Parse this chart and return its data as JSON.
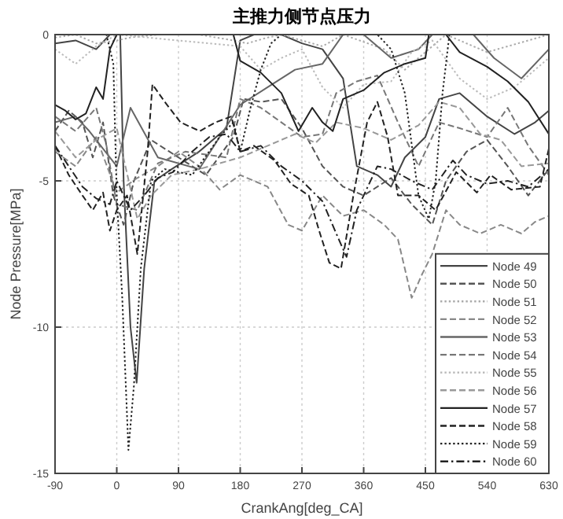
{
  "chart_data": {
    "type": "line",
    "title": "主推力侧节点压力",
    "xlabel": "CrankAng[deg_CA]",
    "ylabel": "Node Pressure[MPa]",
    "xlim": [
      -90,
      630
    ],
    "xticks": [
      -90,
      0,
      90,
      180,
      270,
      360,
      450,
      540,
      630
    ],
    "ylim": [
      -15,
      0
    ],
    "yticks": [
      -15,
      -10,
      -5,
      0
    ],
    "grid": true,
    "legend": "bottom right",
    "marker": "none",
    "series": [
      {
        "name": "Node 49",
        "color": "#444444",
        "line_style": "solid",
        "x": [
          -90,
          -60,
          -30,
          -10,
          5,
          10,
          20,
          29,
          40,
          55,
          80,
          120,
          160,
          180,
          200,
          240,
          270,
          300,
          330,
          350,
          380,
          400,
          420,
          450,
          470,
          500,
          540,
          580,
          610,
          630
        ],
        "values": [
          -0.3,
          -0.2,
          -0.5,
          0,
          0,
          -5,
          -10,
          -11.9,
          -8,
          -5,
          -4.6,
          -4,
          -3.2,
          -0.2,
          0,
          0,
          -0.3,
          -0.5,
          -1.5,
          -4.5,
          -4.8,
          -5.2,
          -4.2,
          -3.5,
          -2.2,
          -2,
          -2.8,
          -3.4,
          -3,
          -2.6
        ]
      },
      {
        "name": "Node 50",
        "color": "#555555",
        "line_style": "dashed",
        "x": [
          -90,
          -70,
          -50,
          -35,
          -20,
          -5,
          10,
          25,
          50,
          90,
          130,
          170,
          185,
          210,
          240,
          270,
          300,
          330,
          360,
          400,
          430,
          460,
          480,
          510,
          540,
          570,
          600,
          630
        ],
        "values": [
          -3.3,
          -2.6,
          -3,
          -4.2,
          -3,
          -5.5,
          -6.5,
          -5,
          -3.6,
          -4.2,
          -4.8,
          -3.5,
          -2.2,
          -2.3,
          -2.2,
          -3.2,
          -4.5,
          -5.2,
          -5.5,
          -4.9,
          -5.8,
          -6.5,
          -5,
          -4,
          -3.6,
          -4.5,
          -5.5,
          -4.6
        ]
      },
      {
        "name": "Node 51",
        "color": "#aaaaaa",
        "line_style": "dotted",
        "x": [
          -90,
          -60,
          -30,
          0,
          20,
          60,
          120,
          170,
          190,
          220,
          240,
          300,
          330,
          390,
          420,
          450,
          480,
          540,
          600,
          630
        ],
        "values": [
          -0.1,
          0,
          -0.3,
          -0.2,
          -0.1,
          0,
          0,
          -0.2,
          -0.3,
          -0.1,
          0,
          -0.4,
          0,
          -0.5,
          -1.2,
          -0.6,
          0,
          -0.6,
          -0.2,
          0
        ]
      },
      {
        "name": "Node 52",
        "color": "#888888",
        "line_style": "dashed",
        "x": [
          -90,
          -60,
          -30,
          0,
          30,
          60,
          90,
          120,
          150,
          180,
          220,
          250,
          270,
          300,
          330,
          360,
          390,
          410,
          430,
          445,
          460,
          480,
          500,
          530,
          560,
          590,
          610,
          630
        ],
        "values": [
          -4,
          -4.5,
          -3.5,
          -5.4,
          -4.9,
          -4.5,
          -4,
          -4.5,
          -5.3,
          -4.8,
          -5.2,
          -6.5,
          -6.7,
          -5.5,
          -6.2,
          -6,
          -6.5,
          -7,
          -9,
          -8.2,
          -7.5,
          -6,
          -6.5,
          -6.8,
          -6.5,
          -6.8,
          -6.4,
          -6.2
        ]
      },
      {
        "name": "Node 53",
        "color": "#666666",
        "line_style": "solid",
        "x": [
          -90,
          -60,
          -40,
          -20,
          0,
          20,
          60,
          120,
          180,
          220,
          260,
          300,
          330,
          360,
          400,
          440,
          460,
          520,
          550,
          590,
          630
        ],
        "values": [
          -3,
          -2.8,
          -3.3,
          -3.9,
          -4.5,
          -2.5,
          -4.2,
          -4.6,
          -2.4,
          -1.8,
          -1.2,
          -1,
          0,
          0,
          -0.8,
          -0.5,
          0,
          0,
          -0.8,
          -1.5,
          -0.5
        ]
      },
      {
        "name": "Node 54",
        "color": "#777777",
        "line_style": "dashed",
        "x": [
          -90,
          -60,
          -30,
          -15,
          0,
          30,
          60,
          100,
          160,
          180,
          210,
          240,
          270,
          300,
          320,
          350,
          380,
          410,
          440,
          470,
          500,
          540,
          570,
          600,
          630
        ],
        "values": [
          -2.8,
          -3.3,
          -2.5,
          -3.8,
          -5.8,
          -6,
          -4.4,
          -4,
          -4.2,
          -2.2,
          -2.5,
          -3,
          -3.5,
          -3.4,
          -2,
          -1.6,
          -1.4,
          -3,
          -4.5,
          -3,
          -3.2,
          -3.5,
          -2.5,
          -3.8,
          -4.8
        ]
      },
      {
        "name": "Node 55",
        "color": "#bbbbbb",
        "line_style": "dotted",
        "x": [
          -90,
          -60,
          -30,
          0,
          180,
          210,
          240,
          270,
          300,
          330,
          360,
          400,
          430,
          460,
          500,
          540,
          580,
          630
        ],
        "values": [
          -0.5,
          -1,
          -0.4,
          0,
          -0.4,
          -1.2,
          -0.8,
          -0.5,
          -1.8,
          -2.5,
          -1.7,
          -1.6,
          -0.6,
          -0.2,
          -1.5,
          -2.2,
          -1.8,
          -0.8
        ]
      },
      {
        "name": "Node 56",
        "color": "#999999",
        "line_style": "dashed",
        "x": [
          -90,
          -60,
          -30,
          0,
          30,
          50,
          80,
          120,
          180,
          220,
          260,
          290,
          320,
          360,
          400,
          440,
          470,
          500,
          530,
          560,
          590,
          630
        ],
        "values": [
          -3.3,
          -4.2,
          -3.6,
          -3.2,
          -6.3,
          -5.5,
          -4.8,
          -4.6,
          -4.2,
          -3.8,
          -3.4,
          -3.7,
          -3,
          -3.2,
          -3.6,
          -3.1,
          -2.3,
          -2.5,
          -3.4,
          -3.6,
          -4.5,
          -4.4
        ]
      },
      {
        "name": "Node 57",
        "color": "#222222",
        "line_style": "solid",
        "x": [
          -90,
          -75,
          -60,
          -45,
          -30,
          -20,
          -10,
          0,
          170,
          180,
          210,
          240,
          265,
          285,
          300,
          315,
          330,
          360,
          390,
          420,
          450,
          455,
          480,
          500,
          540,
          570,
          600,
          630
        ],
        "values": [
          -2.4,
          -2.6,
          -2.9,
          -2.7,
          -1.8,
          -2.2,
          -0.5,
          0,
          0,
          -0.9,
          -1.3,
          -2,
          -3.3,
          -2.5,
          -3,
          -3.3,
          -2.2,
          -1.9,
          -1.3,
          -1,
          -0.8,
          0,
          0,
          -0.6,
          -1.1,
          -1.6,
          -2.3,
          -3.4
        ]
      },
      {
        "name": "Node 58",
        "color": "#222222",
        "line_style": "dashed",
        "x": [
          -90,
          -70,
          -50,
          -35,
          -20,
          -10,
          0,
          15,
          30,
          45,
          52,
          70,
          93,
          121,
          144,
          167,
          180,
          200,
          230,
          254,
          280,
          295,
          310,
          327,
          345,
          365,
          380,
          395,
          410,
          440,
          465,
          495,
          525,
          545,
          575,
          617,
          630
        ],
        "values": [
          -3.8,
          -4.8,
          -5.5,
          -6,
          -5.4,
          -6.7,
          -6,
          -5.5,
          -7.5,
          -4,
          -1.7,
          -2.3,
          -3,
          -3.3,
          -3,
          -2.8,
          -4,
          -3.8,
          -4.3,
          -5.1,
          -5.5,
          -6.7,
          -7.8,
          -8,
          -5.5,
          -3,
          -2.3,
          -3.5,
          -5.5,
          -5.5,
          -6,
          -4.7,
          -5.4,
          -4.8,
          -5.3,
          -5.2,
          -3.9
        ]
      },
      {
        "name": "Node 59",
        "color": "#222222",
        "line_style": "dotted",
        "x": [
          -90,
          -30,
          -15,
          -5,
          0,
          8,
          17,
          25,
          35,
          50,
          70,
          110,
          150,
          170,
          180,
          195,
          210,
          225,
          240,
          380,
          400,
          420,
          440,
          455,
          465,
          475,
          485,
          630
        ],
        "values": [
          0,
          0,
          0,
          -1,
          -5.5,
          -9,
          -14.2,
          -12,
          -8,
          -5,
          -4.6,
          -4.8,
          -3.5,
          -3,
          -4,
          -2.5,
          -1.2,
          -0.3,
          0,
          0,
          -0.5,
          -2,
          -5.5,
          -6.3,
          -5,
          -2,
          0,
          0
        ]
      },
      {
        "name": "Node 60",
        "color": "#222222",
        "line_style": "dashdot",
        "x": [
          -90,
          -70,
          -50,
          -30,
          -10,
          0,
          20,
          40,
          60,
          82,
          110,
          135,
          160,
          180,
          210,
          240,
          270,
          300,
          320,
          335,
          350,
          380,
          400,
          430,
          460,
          490,
          510,
          540,
          570,
          600,
          630
        ],
        "values": [
          -3.8,
          -4.5,
          -5.2,
          -5.6,
          -5.8,
          -5,
          -6,
          -5.5,
          -4.9,
          -4.7,
          -4,
          -3.5,
          -3.4,
          -4,
          -3.8,
          -4.5,
          -5,
          -5.7,
          -6.8,
          -7.6,
          -6,
          -4.5,
          -4.6,
          -5,
          -5.3,
          -4.3,
          -4.8,
          -5.1,
          -5,
          -5.2,
          -4.6
        ]
      }
    ]
  }
}
